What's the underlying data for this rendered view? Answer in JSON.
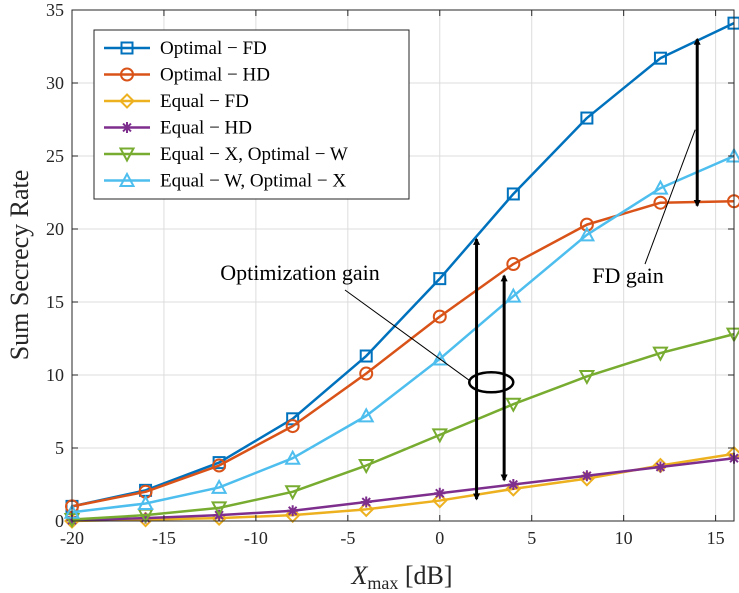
{
  "chart_data": {
    "type": "line",
    "title": "",
    "xlabel": "X_max [dB]",
    "xlabel_main": "X",
    "xlabel_sub": "max",
    "xlabel_unit": " [dB]",
    "ylabel": "Sum Secrecy Rate",
    "xlim": [
      -20,
      16
    ],
    "ylim": [
      0,
      35
    ],
    "xticks": [
      -20,
      -15,
      -10,
      -5,
      0,
      5,
      10,
      15
    ],
    "yticks": [
      0,
      5,
      10,
      15,
      20,
      25,
      30,
      35
    ],
    "grid": true,
    "legend_position": "top-left",
    "x": [
      -20,
      -16,
      -12,
      -8,
      -4,
      0,
      4,
      8,
      12,
      16
    ],
    "series": [
      {
        "name": "Optimal − FD",
        "color": "#0072BD",
        "marker": "square",
        "values": [
          1.0,
          2.1,
          4.0,
          7.0,
          11.3,
          16.6,
          22.4,
          27.6,
          31.7,
          34.1
        ]
      },
      {
        "name": "Optimal − HD",
        "color": "#D95319",
        "marker": "circle",
        "values": [
          1.0,
          2.0,
          3.8,
          6.5,
          10.1,
          14.0,
          17.6,
          20.3,
          21.8,
          21.9
        ]
      },
      {
        "name": "Equal − FD",
        "color": "#EDB120",
        "marker": "diamond",
        "values": [
          0.0,
          0.1,
          0.2,
          0.4,
          0.8,
          1.4,
          2.2,
          2.9,
          3.8,
          4.6
        ]
      },
      {
        "name": "Equal − HD",
        "color": "#7E2F8E",
        "marker": "asterisk",
        "values": [
          0.05,
          0.2,
          0.4,
          0.7,
          1.3,
          1.9,
          2.5,
          3.1,
          3.7,
          4.3
        ]
      },
      {
        "name": "Equal − X, Optimal − W",
        "color": "#77AC30",
        "marker": "triangle-down",
        "values": [
          0.1,
          0.4,
          0.9,
          2.0,
          3.8,
          5.9,
          8.0,
          9.9,
          11.5,
          12.8
        ]
      },
      {
        "name": "Equal − W, Optimal − X",
        "color": "#4DBEEE",
        "marker": "triangle-up",
        "values": [
          0.6,
          1.2,
          2.3,
          4.3,
          7.2,
          11.1,
          15.4,
          19.6,
          22.8,
          25.0
        ]
      }
    ],
    "annotations": [
      {
        "label": "Optimization gain",
        "arrows": [
          {
            "x": 2.0,
            "y_from": 1.5,
            "y_to": 19.3
          },
          {
            "x": 3.5,
            "y_from": 2.8,
            "y_to": 16.8
          }
        ],
        "ellipse": {
          "x": 2.8,
          "y": 9.5
        }
      },
      {
        "label": "FD gain",
        "arrows": [
          {
            "x": 14.0,
            "y_from": 21.6,
            "y_to": 33.0
          }
        ]
      }
    ]
  }
}
